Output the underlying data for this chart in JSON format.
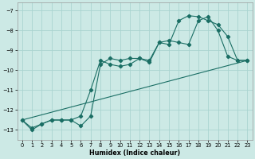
{
  "xlabel": "Humidex (Indice chaleur)",
  "bg_color": "#cce9e5",
  "grid_color": "#aad4d0",
  "line_color": "#1a6e64",
  "xlim": [
    -0.5,
    23.5
  ],
  "ylim": [
    -13.5,
    -6.6
  ],
  "yticks": [
    -13,
    -12,
    -11,
    -10,
    -9,
    -8,
    -7
  ],
  "xticks": [
    0,
    1,
    2,
    3,
    4,
    5,
    6,
    7,
    8,
    9,
    10,
    11,
    12,
    13,
    14,
    15,
    16,
    17,
    18,
    19,
    20,
    21,
    22,
    23
  ],
  "line1_x": [
    0,
    1,
    2,
    3,
    4,
    5,
    6,
    7,
    8,
    9,
    10,
    11,
    12,
    13,
    14,
    15,
    16,
    17,
    18,
    19,
    20,
    21,
    22,
    23
  ],
  "line1_y": [
    -12.5,
    -13.0,
    -12.7,
    -12.5,
    -12.5,
    -12.5,
    -12.8,
    -12.3,
    -9.7,
    -9.4,
    -9.5,
    -9.4,
    -9.4,
    -9.6,
    -8.6,
    -8.5,
    -8.6,
    -8.7,
    -7.5,
    -7.3,
    -8.0,
    -9.3,
    -9.5,
    -9.5
  ],
  "line2_x": [
    0,
    1,
    2,
    3,
    4,
    5,
    6,
    7,
    8,
    9,
    10,
    11,
    12,
    13,
    14,
    15,
    16,
    17,
    18,
    19,
    20,
    21,
    22,
    23
  ],
  "line2_y": [
    -12.5,
    -12.9,
    -12.7,
    -12.5,
    -12.5,
    -12.5,
    -12.3,
    -11.0,
    -9.5,
    -9.7,
    -9.8,
    -9.7,
    -9.4,
    -9.5,
    -8.6,
    -8.7,
    -7.5,
    -7.25,
    -7.3,
    -7.5,
    -7.7,
    -8.3,
    -9.5,
    -9.5
  ],
  "line3_x": [
    0,
    23
  ],
  "line3_y": [
    -12.5,
    -9.5
  ]
}
